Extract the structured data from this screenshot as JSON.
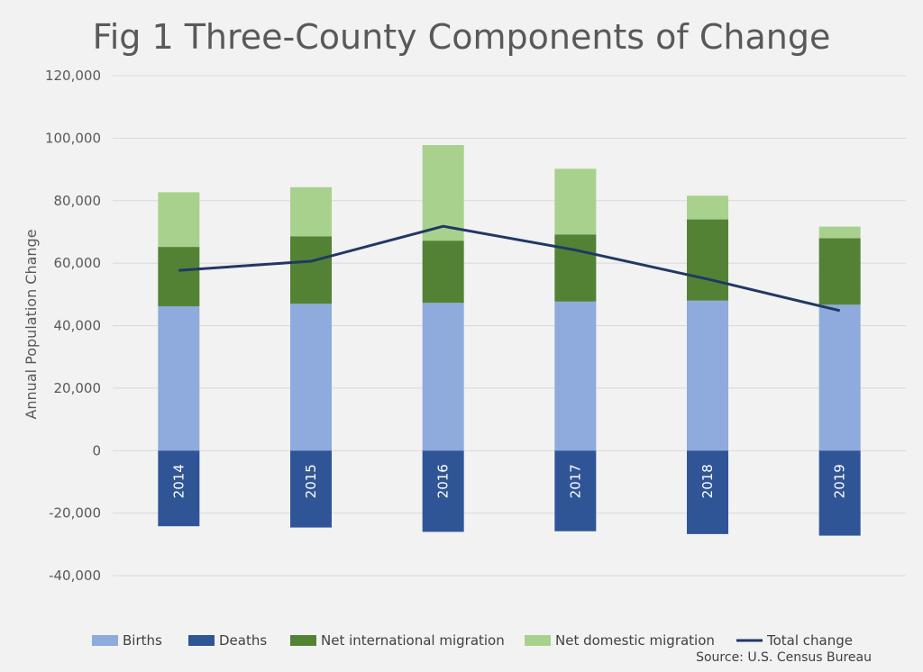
{
  "chart_data": {
    "type": "bar",
    "stacked": true,
    "title": "Fig 1 Three-County Components of Change",
    "ylabel": "Annual Population Change",
    "xlabel": "",
    "source": "Source: U.S. Census Bureau",
    "categories": [
      "2014",
      "2015",
      "2016",
      "2017",
      "2018",
      "2019"
    ],
    "ylim": [
      -40000,
      120000
    ],
    "yticks": [
      -40000,
      -20000,
      0,
      20000,
      40000,
      60000,
      80000,
      100000,
      120000
    ],
    "ytick_labels": [
      "-40,000",
      "-20,000",
      "0",
      "20,000",
      "40,000",
      "60,000",
      "80,000",
      "100,000",
      "120,000"
    ],
    "grid": true,
    "legend_position": "bottom",
    "series": [
      {
        "name": "Births",
        "kind": "bar",
        "color": "#8faadc",
        "values": [
          46200,
          47000,
          47300,
          47700,
          48000,
          46700
        ]
      },
      {
        "name": "Deaths",
        "kind": "bar",
        "color": "#2f5597",
        "values": [
          -24200,
          -24600,
          -26000,
          -25800,
          -26700,
          -27200
        ]
      },
      {
        "name": "Net international migration",
        "kind": "bar",
        "color": "#548235",
        "values": [
          19000,
          21600,
          19900,
          21500,
          26000,
          21300
        ]
      },
      {
        "name": "Net domestic migration",
        "kind": "bar",
        "color": "#a9d18e",
        "values": [
          17500,
          15700,
          30600,
          21000,
          7600,
          3700
        ]
      },
      {
        "name": "Total change",
        "kind": "line",
        "color": "#203864",
        "values": [
          57700,
          60600,
          71800,
          64200,
          54900,
          44800
        ]
      }
    ]
  }
}
